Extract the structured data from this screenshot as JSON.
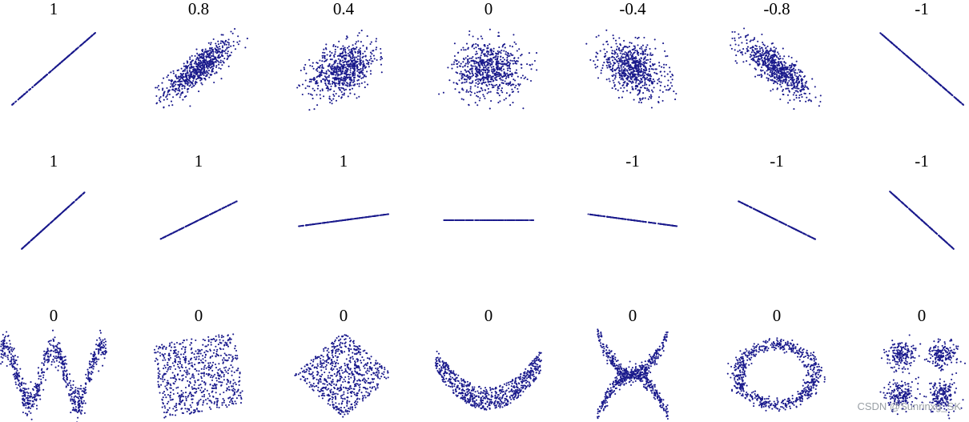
{
  "watermark": "CSDN @Sunrinxg_SK",
  "colors": {
    "points": "#1a1a8c",
    "labels": "#000000"
  },
  "chart_data": {
    "type": "scatter",
    "title": "",
    "rows": [
      {
        "panels": [
          {
            "label": "1",
            "pattern": "linear",
            "correlation": 1
          },
          {
            "label": "0.8",
            "pattern": "gaussian",
            "correlation": 0.8
          },
          {
            "label": "0.4",
            "pattern": "gaussian",
            "correlation": 0.4
          },
          {
            "label": "0",
            "pattern": "gaussian",
            "correlation": 0
          },
          {
            "label": "-0.4",
            "pattern": "gaussian",
            "correlation": -0.4
          },
          {
            "label": "-0.8",
            "pattern": "gaussian",
            "correlation": -0.8
          },
          {
            "label": "-1",
            "pattern": "linear",
            "correlation": -1
          }
        ]
      },
      {
        "panels": [
          {
            "label": "1",
            "pattern": "line",
            "slope": 1.0
          },
          {
            "label": "1",
            "pattern": "line",
            "slope": 0.55
          },
          {
            "label": "1",
            "pattern": "line",
            "slope": 0.15
          },
          {
            "label": "",
            "pattern": "line",
            "slope": 0
          },
          {
            "label": "-1",
            "pattern": "line",
            "slope": -0.15
          },
          {
            "label": "-1",
            "pattern": "line",
            "slope": -0.55
          },
          {
            "label": "-1",
            "pattern": "line",
            "slope": -1.0
          }
        ]
      },
      {
        "panels": [
          {
            "label": "0",
            "pattern": "sine"
          },
          {
            "label": "0",
            "pattern": "tilted-square"
          },
          {
            "label": "0",
            "pattern": "diamond"
          },
          {
            "label": "0",
            "pattern": "parabola"
          },
          {
            "label": "0",
            "pattern": "x-shape"
          },
          {
            "label": "0",
            "pattern": "ring"
          },
          {
            "label": "0",
            "pattern": "four-clusters"
          }
        ]
      }
    ]
  }
}
